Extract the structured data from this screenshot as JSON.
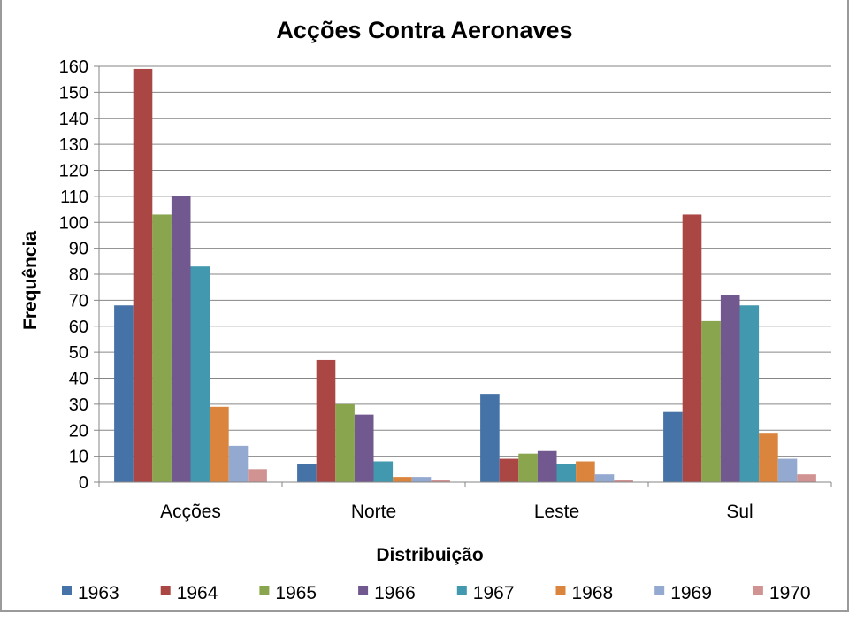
{
  "chart_data": {
    "type": "bar",
    "title": "Acções Contra Aeronaves",
    "xlabel": "Distribuição",
    "ylabel": "Frequência",
    "ylim": [
      0,
      160
    ],
    "yticks": [
      "0",
      "10",
      "20",
      "30",
      "40",
      "50",
      "60",
      "70",
      "80",
      "90",
      "100",
      "110",
      "120",
      "130",
      "140",
      "150",
      "160"
    ],
    "categories": [
      "Acções",
      "Norte",
      "Leste",
      "Sul"
    ],
    "grid": true,
    "legend_position": "bottom",
    "series": [
      {
        "name": "1963",
        "color": "#4572A7",
        "values": [
          68,
          7,
          34,
          27
        ]
      },
      {
        "name": "1964",
        "color": "#AA4643",
        "values": [
          159,
          47,
          9,
          103
        ]
      },
      {
        "name": "1965",
        "color": "#89A54E",
        "values": [
          103,
          30,
          11,
          62
        ]
      },
      {
        "name": "1966",
        "color": "#71588F",
        "values": [
          110,
          26,
          12,
          72
        ]
      },
      {
        "name": "1967",
        "color": "#4198AF",
        "values": [
          83,
          8,
          7,
          68
        ]
      },
      {
        "name": "1968",
        "color": "#DB843D",
        "values": [
          29,
          2,
          8,
          19
        ]
      },
      {
        "name": "1969",
        "color": "#93A9CF",
        "values": [
          14,
          2,
          3,
          9
        ]
      },
      {
        "name": "1970",
        "color": "#D19392",
        "values": [
          5,
          1,
          1,
          3
        ]
      }
    ]
  }
}
